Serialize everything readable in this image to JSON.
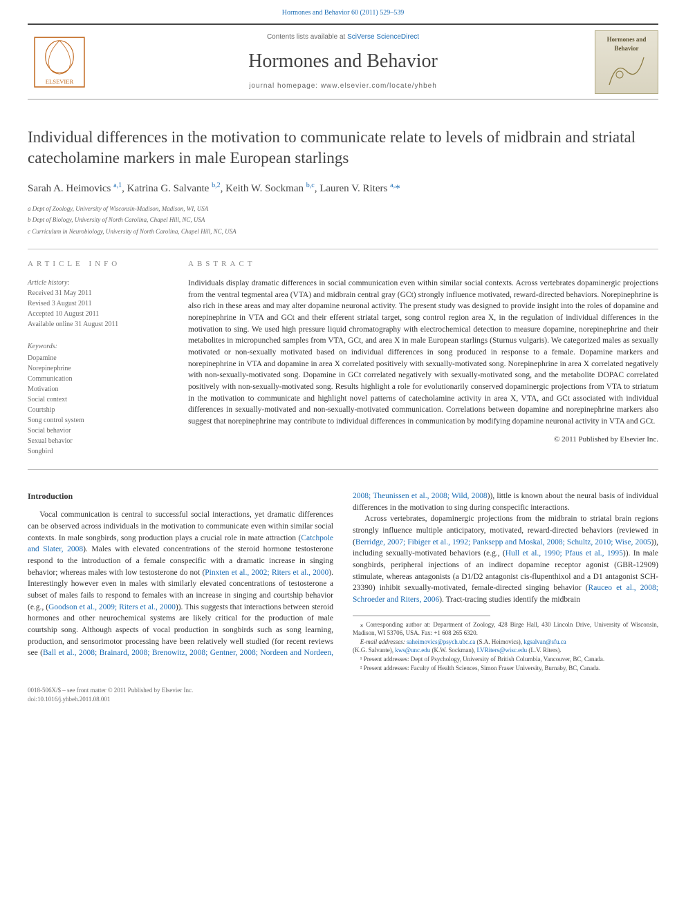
{
  "top_link_prefix": "Hormones and Behavior 60 (2011) 529–539",
  "banner": {
    "contents_line_prefix": "Contents lists available at ",
    "contents_link": "SciVerse ScienceDirect",
    "journal_name": "Hormones and Behavior",
    "homepage_prefix": "journal homepage: ",
    "homepage_url": "www.elsevier.com/locate/yhbeh",
    "cover_title": "Hormones and Behavior"
  },
  "article": {
    "title": "Individual differences in the motivation to communicate relate to levels of midbrain and striatal catecholamine markers in male European starlings",
    "authors_html": "Sarah A. Heimovics <sup>a,1</sup>, Katrina G. Salvante <sup>b,2</sup>, Keith W. Sockman <sup>b,c</sup>, Lauren V. Riters <sup>a,</sup>",
    "star_author": "*",
    "affiliations": [
      "a  Dept of Zoology, University of Wisconsin-Madison, Madison, WI, USA",
      "b  Dept of Biology, University of North Carolina, Chapel Hill, NC, USA",
      "c  Curriculum in Neurobiology, University of North Carolina, Chapel Hill, NC, USA"
    ]
  },
  "info": {
    "heading": "article info",
    "history_label": "Article history:",
    "history": [
      "Received 31 May 2011",
      "Revised 3 August 2011",
      "Accepted 10 August 2011",
      "Available online 31 August 2011"
    ],
    "kw_label": "Keywords:",
    "keywords": [
      "Dopamine",
      "Norepinephrine",
      "Communication",
      "Motivation",
      "Social context",
      "Courtship",
      "Song control system",
      "Social behavior",
      "Sexual behavior",
      "Songbird"
    ]
  },
  "abstract": {
    "heading": "abstract",
    "text": "Individuals display dramatic differences in social communication even within similar social contexts. Across vertebrates dopaminergic projections from the ventral tegmental area (VTA) and midbrain central gray (GCt) strongly influence motivated, reward-directed behaviors. Norepinephrine is also rich in these areas and may alter dopamine neuronal activity. The present study was designed to provide insight into the roles of dopamine and norepinephrine in VTA and GCt and their efferent striatal target, song control region area X, in the regulation of individual differences in the motivation to sing. We used high pressure liquid chromatography with electrochemical detection to measure dopamine, norepinephrine and their metabolites in micropunched samples from VTA, GCt, and area X in male European starlings (Sturnus vulgaris). We categorized males as sexually motivated or non-sexually motivated based on individual differences in song produced in response to a female. Dopamine markers and norepinephrine in VTA and dopamine in area X correlated positively with sexually-motivated song. Norepinephrine in area X correlated negatively with non-sexually-motivated song. Dopamine in GCt correlated negatively with sexually-motivated song, and the metabolite DOPAC correlated positively with non-sexually-motivated song. Results highlight a role for evolutionarily conserved dopaminergic projections from VTA to striatum in the motivation to communicate and highlight novel patterns of catecholamine activity in area X, VTA, and GCt associated with individual differences in sexually-motivated and non-sexually-motivated communication. Correlations between dopamine and norepinephrine markers also suggest that norepinephrine may contribute to individual differences in communication by modifying dopamine neuronal activity in VTA and GCt.",
    "copyright": "© 2011 Published by Elsevier Inc."
  },
  "intro": {
    "heading": "Introduction",
    "p1a": "Vocal communication is central to successful social interactions, yet dramatic differences can be observed across individuals in the motivation to communicate even within similar social contexts. In male songbirds, song production plays a crucial role in mate attraction (",
    "p1_link1": "Catchpole and Slater, 2008",
    "p1b": "). Males with elevated concentrations of the steroid hormone testosterone respond to the introduction of a female conspecific with a dramatic increase in singing behavior; whereas males with low testosterone do not (",
    "p1_link2": "Pinxten et al., 2002; Riters et al., 2000",
    "p1c": "). Interestingly however even in males with similarly elevated concentrations of testosterone a subset of males fails to respond to females with an increase in singing and courtship behavior (e.g., (",
    "p1_link3": "Goodson et al., 2009; Riters et al., 2000",
    "p1d": ")). This suggests that interactions between steroid hormones and other neurochemical systems are likely critical for the production of male courtship song. Although aspects of vocal production in songbirds such as song learning, production, and sensorimotor processing have been relatively well studied (for recent reviews see (",
    "p1_link4": "Ball et al., 2008; Brainard, 2008; Brenowitz, 2008; Gentner, 2008; Nordeen and Nordeen, 2008; Theunissen et al., 2008; Wild, 2008",
    "p1e": ")), little is known about the neural basis of individual differences in the motivation to sing during conspecific interactions.",
    "p2a": "Across vertebrates, dopaminergic projections from the midbrain to striatal brain regions strongly influence multiple anticipatory, motivated, reward-directed behaviors (reviewed in (",
    "p2_link1": "Berridge, 2007; Fibiger et al., 1992; Panksepp and Moskal, 2008; Schultz, 2010; Wise, 2005",
    "p2b": ")), including sexually-motivated behaviors (e.g., (",
    "p2_link2": "Hull et al., 1990; Pfaus et al., 1995",
    "p2c": ")). In male songbirds, peripheral injections of an indirect dopamine receptor agonist (GBR-12909) stimulate, whereas antagonists (a D1/D2 antagonist cis-flupenthixol and a D1 antagonist SCH-23390) inhibit sexually-motivated, female-directed singing behavior (",
    "p2_link3": "Rauceo et al., 2008; Schroeder and Riters, 2006",
    "p2d": "). Tract-tracing studies identify the midbrain"
  },
  "footnotes": {
    "corresponding": "⁎ Corresponding author at: Department of Zoology, 428 Birge Hall, 430 Lincoln Drive, University of Wisconsin, Madison, WI 53706, USA. Fax: +1 608 265 6320.",
    "emails_label": "E-mail addresses: ",
    "email1": "saheimovics@psych.ubc.ca",
    "email1_who": " (S.A. Heimovics), ",
    "email2": "kgsalvan@sfu.ca",
    "email2_who": " (K.G. Salvante), ",
    "email3": "kws@unc.edu",
    "email3_who": " (K.W. Sockman), ",
    "email4": "LVRiters@wisc.edu",
    "email4_who": " (L.V. Riters).",
    "fn1": "¹ Present addresses: Dept of Psychology, University of British Columbia, Vancouver, BC, Canada.",
    "fn2": "² Present addresses: Faculty of Health Sciences, Simon Fraser University, Burnaby, BC, Canada."
  },
  "footer": {
    "line1": "0018-506X/$ – see front matter © 2011 Published by Elsevier Inc.",
    "line2": "doi:10.1016/j.yhbeh.2011.08.001"
  },
  "colors": {
    "link": "#1a6bb3",
    "text": "#333333",
    "muted": "#666666",
    "rule": "#bbbbbb"
  }
}
